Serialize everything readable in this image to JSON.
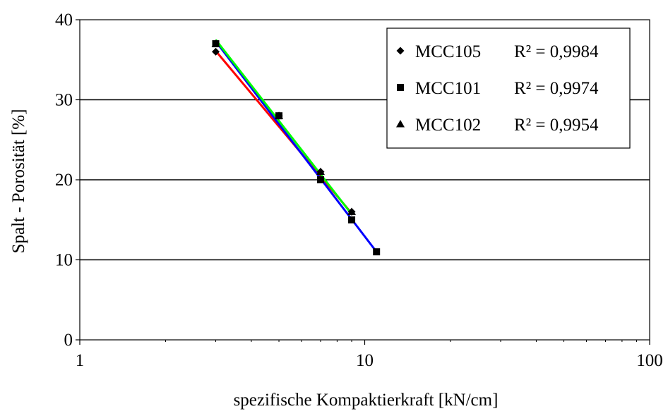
{
  "chart_data": {
    "type": "scatter",
    "title": "",
    "xlabel": "spezifische Kompaktierkraft [kN/cm]",
    "ylabel": "Spalt - Porosität [%]",
    "x_scale": "log",
    "xlim": [
      1,
      100
    ],
    "ylim": [
      0,
      40
    ],
    "x_ticks": [
      "1",
      "10",
      "100"
    ],
    "y_ticks": [
      "0",
      "10",
      "20",
      "30",
      "40"
    ],
    "grid": "horizontal major lines",
    "legend_position": "top-right",
    "series": [
      {
        "name": "MCC105",
        "r2_label": "R² = 0,9984",
        "marker": "diamond",
        "line_color": "#ff0000",
        "x": [
          3,
          5,
          7,
          9
        ],
        "y": [
          36,
          28,
          21,
          16
        ],
        "fit": [
          [
            3,
            36.1
          ],
          [
            9,
            15.8
          ]
        ]
      },
      {
        "name": "MCC101",
        "r2_label": "R² = 0,9974",
        "marker": "square",
        "line_color": "#0000ff",
        "x": [
          3,
          5,
          7,
          9,
          11
        ],
        "y": [
          37,
          28,
          20,
          15,
          11
        ],
        "fit": [
          [
            3,
            37.3
          ],
          [
            11,
            11.0
          ]
        ]
      },
      {
        "name": "MCC102",
        "r2_label": "R² = 0,9954",
        "marker": "triangle",
        "line_color": "#00ff00",
        "x": [
          3,
          5,
          7,
          9
        ],
        "y": [
          37,
          28,
          21,
          16
        ],
        "fit": [
          [
            3,
            37.5
          ],
          [
            9,
            15.7
          ]
        ]
      }
    ]
  }
}
